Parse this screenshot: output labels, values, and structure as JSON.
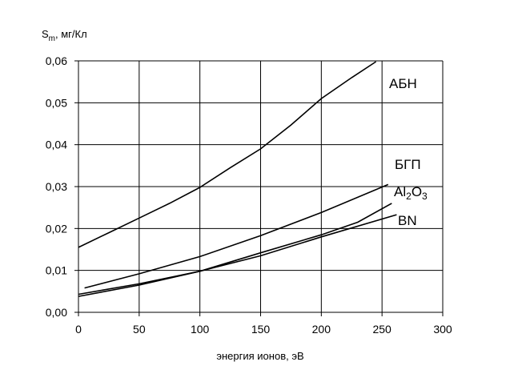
{
  "chart_data": {
    "type": "line",
    "ylabel_main": "S",
    "ylabel_sub": "m",
    "ylabel_rest": ", мг/Кл",
    "xlabel": "энергия ионов, эВ",
    "xlim": [
      0,
      300
    ],
    "ylim": [
      0,
      0.06
    ],
    "xticks": [
      0,
      50,
      100,
      150,
      200,
      250,
      300
    ],
    "xtick_labels": [
      "0",
      "50",
      "100",
      "150",
      "200",
      "250",
      "300"
    ],
    "yticks": [
      0,
      0.01,
      0.02,
      0.03,
      0.04,
      0.05,
      0.06
    ],
    "ytick_labels": [
      "0,00",
      "0,01",
      "0,02",
      "0,03",
      "0,04",
      "0,05",
      "0,06"
    ],
    "grid": true,
    "series": [
      {
        "name": "АБН",
        "x": [
          0,
          25,
          50,
          75,
          100,
          125,
          150,
          175,
          200,
          225,
          245
        ],
        "y": [
          0.0155,
          0.019,
          0.0225,
          0.026,
          0.0298,
          0.0345,
          0.039,
          0.0447,
          0.051,
          0.056,
          0.0598
        ]
      },
      {
        "name": "БГП",
        "x": [
          5,
          50,
          100,
          150,
          200,
          255
        ],
        "y": [
          0.0058,
          0.0092,
          0.0133,
          0.0183,
          0.0238,
          0.0305
        ]
      },
      {
        "name": "Al₂O₃",
        "name_parts": [
          "Al",
          "2",
          "O",
          "3"
        ],
        "x": [
          0,
          50,
          100,
          150,
          200,
          230,
          258
        ],
        "y": [
          0.0043,
          0.0068,
          0.0098,
          0.0142,
          0.0185,
          0.0215,
          0.026
        ]
      },
      {
        "name": "BN",
        "x": [
          0,
          50,
          100,
          150,
          200,
          262
        ],
        "y": [
          0.0038,
          0.0065,
          0.0098,
          0.0135,
          0.018,
          0.0233
        ]
      }
    ]
  }
}
